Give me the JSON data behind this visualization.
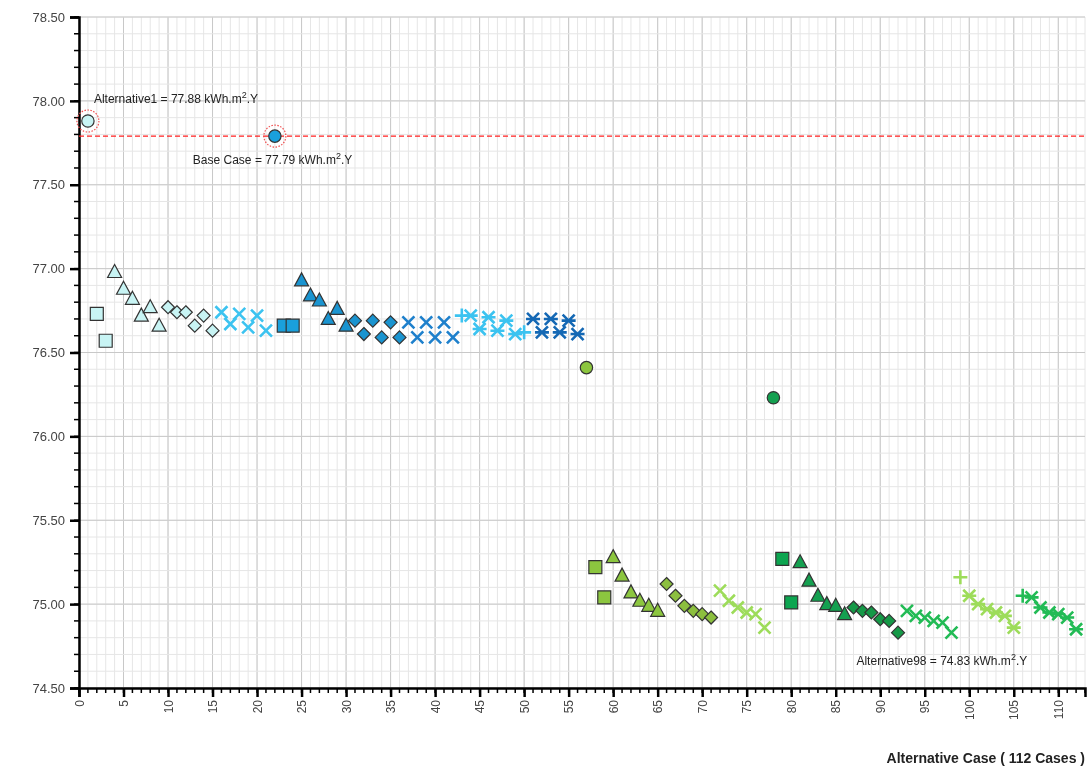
{
  "chart_data": {
    "type": "scatter",
    "xlabel": "Alternative Case ( 112 Cases )",
    "xlim": [
      0,
      113
    ],
    "xticks": [
      0,
      5,
      10,
      15,
      20,
      25,
      30,
      35,
      40,
      45,
      50,
      55,
      60,
      65,
      70,
      75,
      80,
      85,
      90,
      95,
      100,
      105,
      110
    ],
    "ylim": [
      74.5,
      78.5
    ],
    "yticks": [
      {
        "value": 74.5,
        "label": "74.50"
      },
      {
        "value": 75,
        "label": "75.00"
      },
      {
        "value": 75.5,
        "label": "75.50"
      },
      {
        "value": 76,
        "label": "76.00"
      },
      {
        "value": 76.5,
        "label": "76.50"
      },
      {
        "value": 77,
        "label": "77.00"
      },
      {
        "value": 77.5,
        "label": "77.50"
      },
      {
        "value": 78,
        "label": "78.00"
      },
      {
        "value": 78.5,
        "label": "78.50"
      }
    ],
    "grid": true,
    "series": [
      {
        "marker": "circle",
        "color": "#c8f4f4",
        "x": [
          1
        ],
        "values": [
          77.88
        ]
      },
      {
        "marker": "circle",
        "color": "#1aa0dc",
        "x": [
          22
        ],
        "values": [
          77.79
        ]
      },
      {
        "marker": "square",
        "color": "#c8f4f4",
        "x": [
          2,
          3
        ],
        "values": [
          76.73,
          76.57
        ]
      },
      {
        "marker": "triangle",
        "color": "#c8f4f4",
        "x": [
          4,
          5,
          6,
          7,
          8,
          9
        ],
        "values": [
          76.98,
          76.88,
          76.82,
          76.72,
          76.77,
          76.66
        ]
      },
      {
        "marker": "diamond",
        "color": "#c8f4f4",
        "x": [
          10,
          11,
          12,
          13,
          14,
          15
        ],
        "values": [
          76.77,
          76.74,
          76.74,
          76.66,
          76.72,
          76.63
        ]
      },
      {
        "marker": "x",
        "color": "#3cc3f0",
        "x": [
          16,
          17,
          18,
          19,
          20,
          21
        ],
        "values": [
          76.74,
          76.67,
          76.73,
          76.65,
          76.72,
          76.63
        ]
      },
      {
        "marker": "square",
        "color": "#1aa0dc",
        "x": [
          23,
          24
        ],
        "values": [
          76.66,
          76.66
        ]
      },
      {
        "marker": "triangle",
        "color": "#1a94d0",
        "x": [
          25,
          26,
          27,
          28,
          29,
          30
        ],
        "values": [
          76.93,
          76.84,
          76.81,
          76.7,
          76.76,
          76.66
        ]
      },
      {
        "marker": "diamond",
        "color": "#1a94d0",
        "x": [
          31,
          32,
          33,
          34,
          35,
          36
        ],
        "values": [
          76.69,
          76.61,
          76.69,
          76.59,
          76.68,
          76.59
        ]
      },
      {
        "marker": "x",
        "color": "#1e80cc",
        "x": [
          37,
          38,
          39,
          40,
          41,
          42
        ],
        "values": [
          76.68,
          76.59,
          76.68,
          76.59,
          76.68,
          76.59
        ]
      },
      {
        "marker": "plus",
        "color": "#3cc3f0",
        "x": [
          43,
          50
        ],
        "values": [
          76.72,
          76.62
        ]
      },
      {
        "marker": "cross",
        "color": "#3cc3f0",
        "x": [
          44,
          45,
          46,
          47,
          48,
          49
        ],
        "values": [
          76.72,
          76.64,
          76.71,
          76.63,
          76.69,
          76.61
        ]
      },
      {
        "marker": "cross",
        "color": "#1468b4",
        "x": [
          51,
          52,
          53,
          54,
          55,
          56
        ],
        "values": [
          76.7,
          76.62,
          76.7,
          76.62,
          76.69,
          76.61
        ]
      },
      {
        "marker": "circle",
        "color": "#8cc63f",
        "x": [
          57
        ],
        "values": [
          76.41
        ]
      },
      {
        "marker": "circle",
        "color": "#14a050",
        "x": [
          78
        ],
        "values": [
          76.23
        ]
      },
      {
        "marker": "square",
        "color": "#8cc63f",
        "x": [
          58,
          59
        ],
        "values": [
          75.22,
          75.04
        ]
      },
      {
        "marker": "triangle",
        "color": "#8cc63f",
        "x": [
          60,
          61,
          62,
          63,
          64,
          65
        ],
        "values": [
          75.28,
          75.17,
          75.07,
          75.02,
          74.99,
          74.96
        ]
      },
      {
        "marker": "diamond",
        "color": "#8cbf3f",
        "x": [
          66,
          67,
          68,
          69,
          70,
          71
        ],
        "values": [
          75.12,
          75.05,
          74.99,
          74.96,
          74.94,
          74.92
        ]
      },
      {
        "marker": "x",
        "color": "#9ddc5a",
        "x": [
          72,
          73,
          74,
          75,
          76,
          77
        ],
        "values": [
          75.08,
          75.02,
          74.98,
          74.95,
          74.94,
          74.86
        ]
      },
      {
        "marker": "square",
        "color": "#0ca550",
        "x": [
          79,
          80
        ],
        "values": [
          75.27,
          75.01
        ]
      },
      {
        "marker": "triangle",
        "color": "#14a050",
        "x": [
          81,
          82,
          83,
          84,
          85,
          86
        ],
        "values": [
          75.25,
          75.14,
          75.05,
          75.0,
          74.99,
          74.94
        ]
      },
      {
        "marker": "diamond",
        "color": "#159947",
        "x": [
          87,
          88,
          89,
          90,
          91,
          92
        ],
        "values": [
          74.98,
          74.96,
          74.95,
          74.91,
          74.9,
          74.83
        ]
      },
      {
        "marker": "x",
        "color": "#22bb55",
        "x": [
          93,
          94,
          95,
          96,
          97,
          98
        ],
        "values": [
          74.96,
          74.93,
          74.92,
          74.9,
          74.89,
          74.83
        ]
      },
      {
        "marker": "plus",
        "color": "#9ddc5a",
        "x": [
          99
        ],
        "values": [
          75.16
        ]
      },
      {
        "marker": "cross",
        "color": "#9ddc5a",
        "x": [
          100,
          101,
          102,
          103,
          104,
          105
        ],
        "values": [
          75.05,
          75.0,
          74.97,
          74.95,
          74.93,
          74.86
        ]
      },
      {
        "marker": "plus",
        "color": "#22bb55",
        "x": [
          106
        ],
        "values": [
          75.05
        ]
      },
      {
        "marker": "cross",
        "color": "#22bb55",
        "x": [
          107,
          108,
          109,
          110,
          111,
          112
        ],
        "values": [
          75.04,
          74.98,
          74.95,
          74.94,
          74.92,
          74.85
        ]
      }
    ],
    "ref_lines": [
      {
        "axis": "y",
        "value": 77.79,
        "color": "#ff2020",
        "line_style": "dashed"
      }
    ],
    "annotations": [
      {
        "text": "Alternative1 = 77.88 kWh.m$^{2}$.Y",
        "x": 1,
        "y": 77.88
      },
      {
        "text": "Base Case = 77.79 kWh.m$^{2}$.Y",
        "x": 22,
        "y": 77.79
      },
      {
        "text": "Alternative98 = 74.83 kWh.m$^{2}$.Y",
        "x": 98,
        "y": 74.83
      }
    ]
  }
}
